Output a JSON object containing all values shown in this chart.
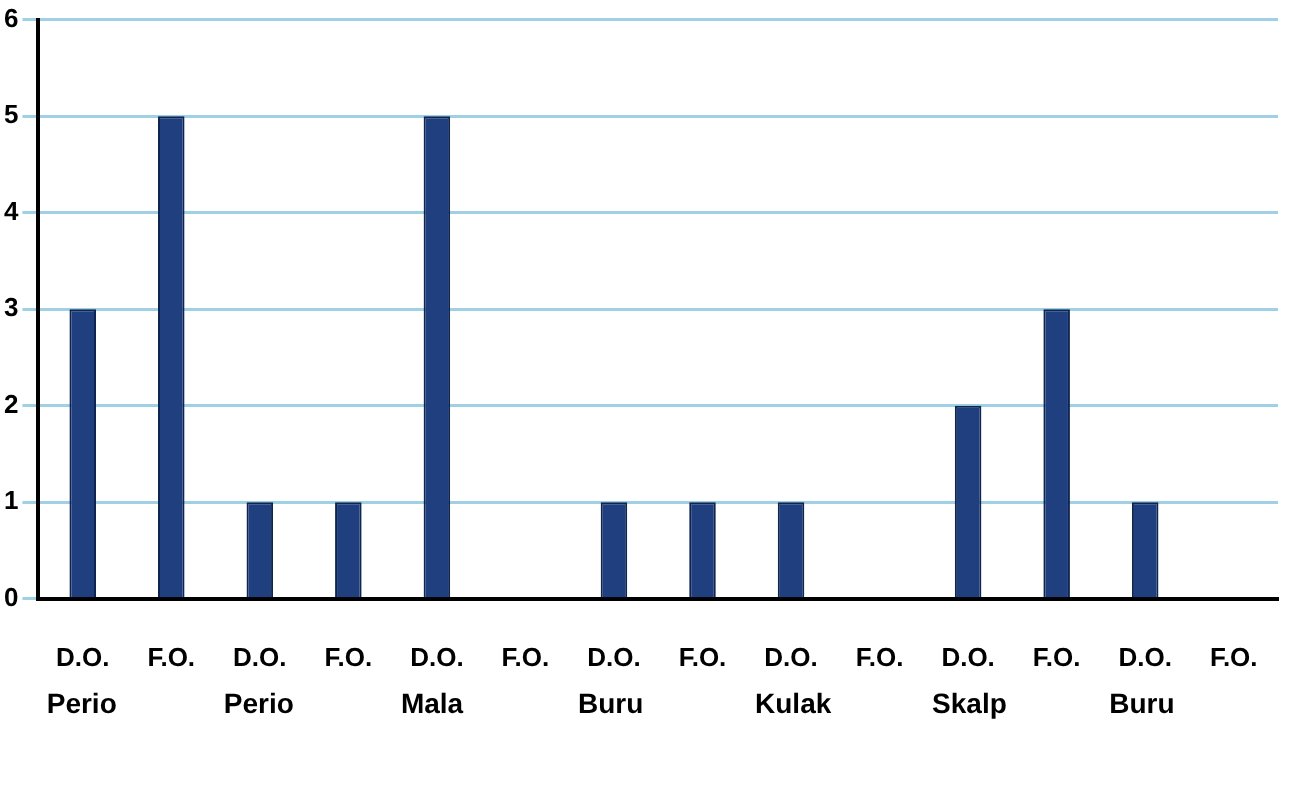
{
  "chart_data": {
    "type": "bar",
    "categories": [
      "D.O.",
      "F.O.",
      "D.O.",
      "F.O.",
      "D.O.",
      "F.O.",
      "D.O.",
      "F.O.",
      "D.O.",
      "F.O.",
      "D.O.",
      "F.O.",
      "D.O.",
      "F.O."
    ],
    "values": [
      3,
      5,
      1,
      1,
      5,
      0,
      1,
      1,
      1,
      0,
      2,
      3,
      1,
      0
    ],
    "color": "#1f3f7f",
    "ylim": [
      0,
      6
    ],
    "yticks": [
      0,
      1,
      2,
      3,
      4,
      5,
      6
    ],
    "grid": "y",
    "legend": false,
    "annotations": [
      "Perio",
      "Perio",
      "Mala",
      "Buru",
      "Kulak",
      "Skalp",
      "Buru"
    ]
  }
}
